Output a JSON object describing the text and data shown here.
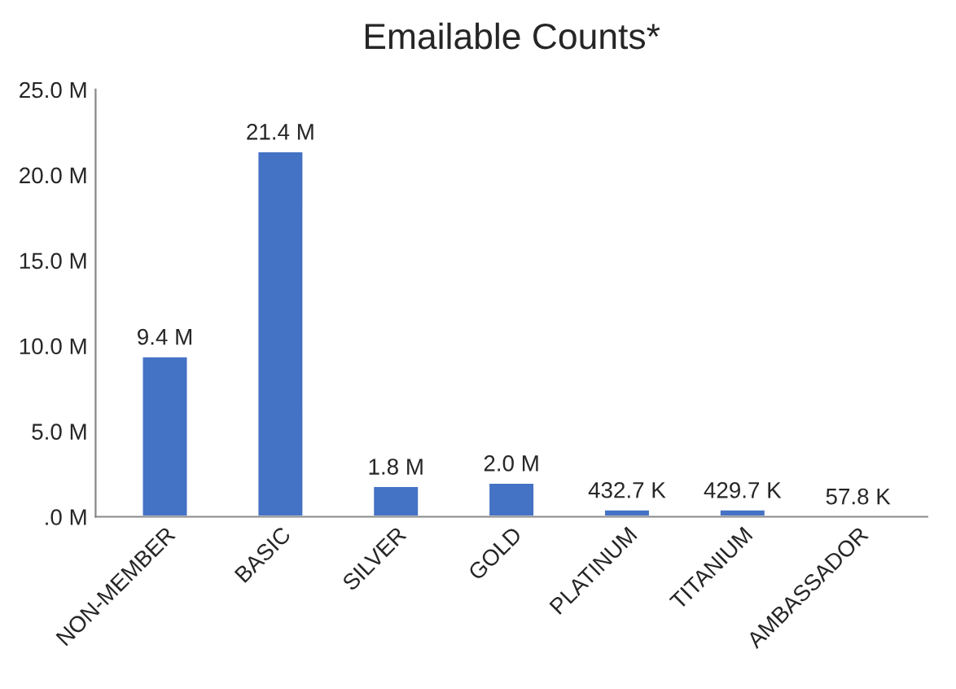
{
  "chart_data": {
    "type": "bar",
    "title": "Emailable Counts*",
    "categories": [
      "NON-MEMBER",
      "BASIC",
      "SILVER",
      "GOLD",
      "PLATINUM",
      "TITANIUM",
      "AMBASSADOR"
    ],
    "values": [
      9.4,
      21.4,
      1.8,
      2.0,
      0.4327,
      0.4297,
      0.0578
    ],
    "value_labels": [
      "9.4 M",
      "21.4 M",
      "1.8 M",
      "2.0 M",
      "432.7 K",
      "429.7 K",
      "57.8 K"
    ],
    "color": "#4472c4",
    "ylim": [
      0,
      25
    ],
    "yticks": [
      {
        "value": 0,
        "label": ".0 M"
      },
      {
        "value": 5,
        "label": "5.0 M"
      },
      {
        "value": 10,
        "label": "10.0 M"
      },
      {
        "value": 15,
        "label": "15.0 M"
      },
      {
        "value": 20,
        "label": "20.0 M"
      },
      {
        "value": 25,
        "label": "25.0 M"
      }
    ],
    "grid": false
  }
}
